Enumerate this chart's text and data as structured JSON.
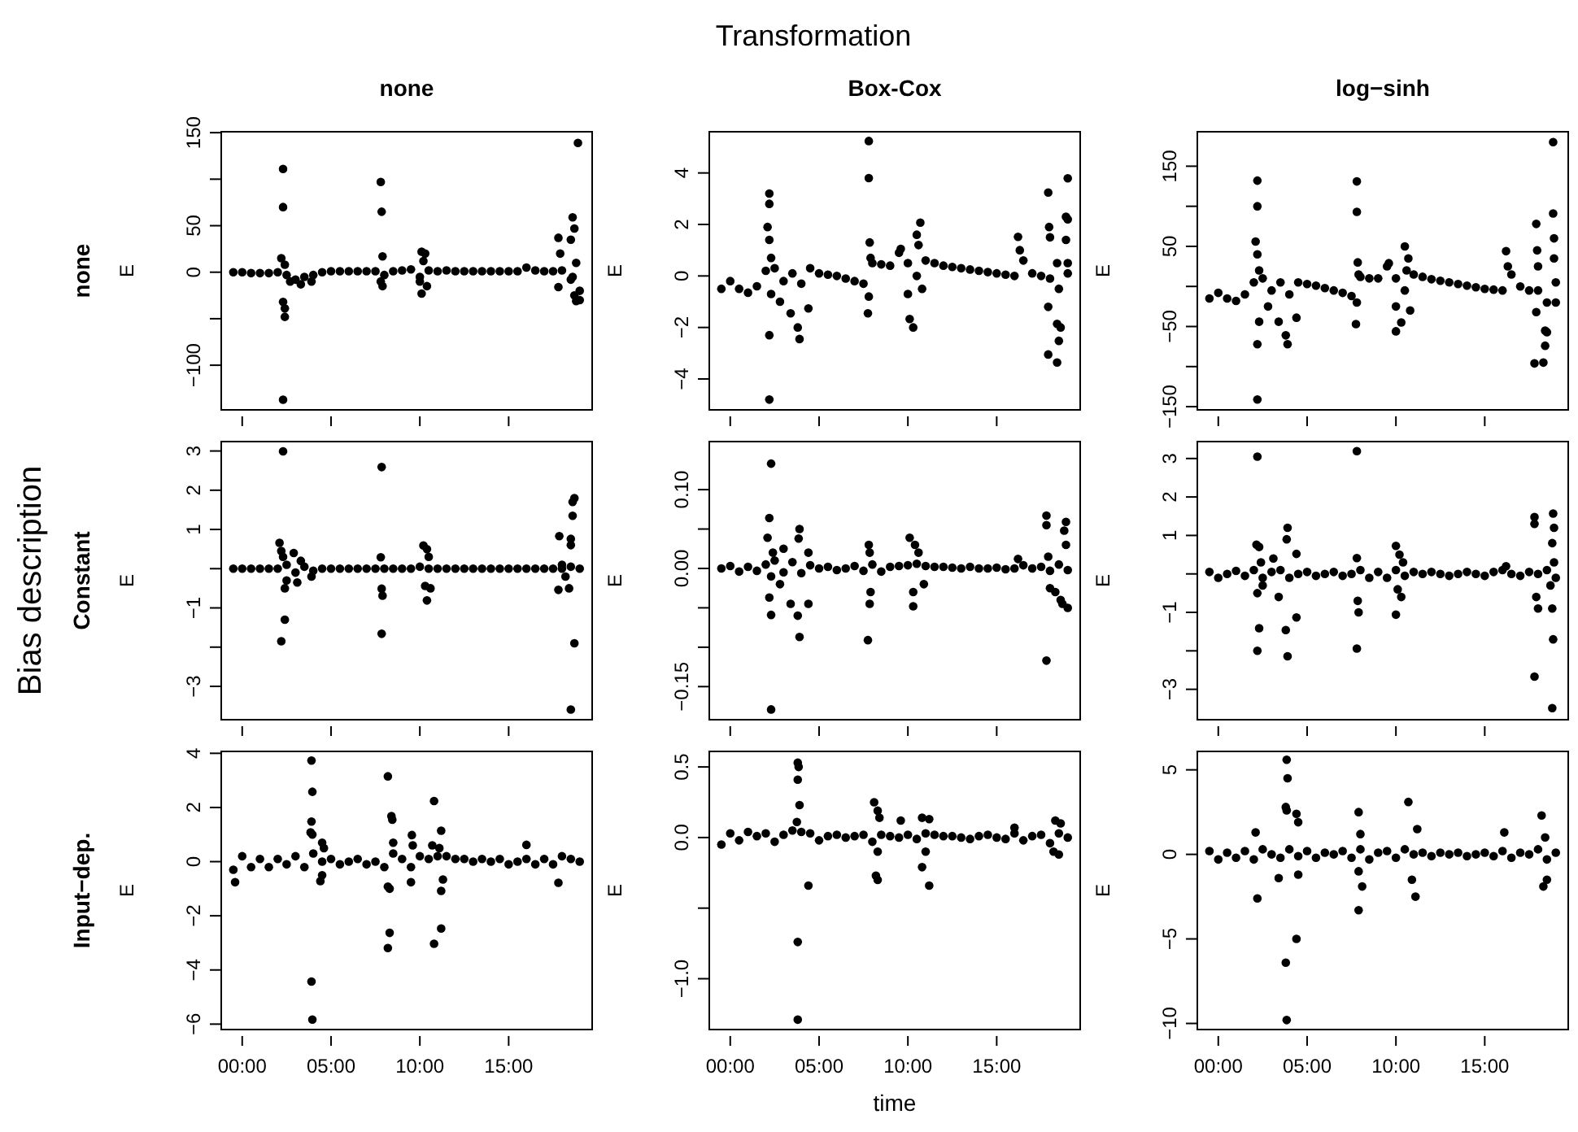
{
  "chart_data": [
    {
      "type": "scatter",
      "title": "none",
      "ylabel": "E",
      "annotations": [
        "Transformation",
        "Bias description",
        "none"
      ],
      "color": "#000000",
      "marker": "circle",
      "tick_labels": "y",
      "xlim": [
        -1.18,
        19.7
      ],
      "ylim": [
        -148,
        151
      ],
      "xticks": [
        {
          "value": 0,
          "label": null
        },
        {
          "value": 5,
          "label": null
        },
        {
          "value": 10,
          "label": null
        },
        {
          "value": 15,
          "label": null
        }
      ],
      "yticks": [
        150,
        {
          "value": 100,
          "label": null
        },
        50,
        0,
        {
          "value": -50,
          "label": null
        },
        -100
      ],
      "x": [
        -0.5,
        0,
        0.5,
        1,
        1.5,
        2,
        2.5,
        3,
        3.5,
        4,
        4.5,
        5,
        5.5,
        6,
        6.5,
        7,
        7.5,
        8,
        8.5,
        9,
        9.5,
        10,
        10.5,
        11,
        11.5,
        12,
        12.5,
        13,
        13.5,
        14,
        14.5,
        15,
        15.5,
        16,
        16.5,
        17,
        17.5,
        18,
        18.5,
        19,
        2.3,
        2.3,
        2.2,
        2.4,
        2.3,
        2.4,
        2.4,
        2.3,
        2.7,
        3.3,
        3.9,
        7.8,
        7.85,
        7.9,
        7.8,
        7.9,
        10.1,
        10.3,
        10.2,
        10.0,
        10.1,
        10.4,
        17.8,
        17.9,
        17.8,
        18.6,
        18.7,
        18.5,
        18.8,
        18.6,
        18.7,
        18.8,
        19.0,
        18.9
      ],
      "values": [
        0,
        0,
        -1,
        -1,
        -1,
        0,
        -3,
        -8,
        -5,
        -3,
        0,
        1,
        1,
        1,
        1,
        1,
        1,
        -3,
        1,
        2,
        3,
        -5,
        2,
        1,
        2,
        1,
        1,
        1,
        1,
        1,
        1,
        1,
        1,
        5,
        2,
        1,
        1,
        2,
        -8,
        -20,
        111,
        70,
        15,
        8,
        -32,
        -39,
        -48,
        -137,
        -10,
        -13,
        -10,
        97,
        65,
        17,
        -10,
        -15,
        22,
        20,
        12,
        -10,
        -23,
        -15,
        37,
        20,
        -16,
        59,
        47,
        35,
        10,
        -5,
        -25,
        -31,
        -30,
        139
      ]
    },
    {
      "type": "scatter",
      "title": "Box-Cox",
      "ylabel": "E",
      "color": "#000000",
      "marker": "circle",
      "tick_labels": "y",
      "xlim": [
        -1.18,
        19.7
      ],
      "ylim": [
        -5.2,
        5.6
      ],
      "xticks": [
        {
          "value": 0,
          "label": null
        },
        {
          "value": 5,
          "label": null
        },
        {
          "value": 10,
          "label": null
        },
        {
          "value": 15,
          "label": null
        }
      ],
      "yticks": [
        4,
        2,
        0,
        -2,
        -4
      ],
      "x": [
        -0.5,
        0,
        0.5,
        1,
        1.5,
        2,
        2.5,
        3,
        3.5,
        4,
        4.5,
        5,
        5.5,
        6,
        6.5,
        7,
        7.5,
        8,
        8.5,
        9,
        9.5,
        10,
        10.5,
        11,
        11.5,
        12,
        12.5,
        13,
        13.5,
        14,
        14.5,
        15,
        15.5,
        16,
        16.5,
        17,
        17.5,
        18,
        18.5,
        19,
        2.2,
        2.2,
        2.1,
        2.2,
        2.3,
        2.3,
        2.2,
        2.2,
        3.4,
        3.8,
        3.9,
        4.4,
        2.8,
        7.8,
        7.8,
        7.85,
        7.9,
        7.8,
        7.75,
        9.6,
        10.0,
        10.1,
        10.3,
        10.5,
        10.7,
        10.6,
        10.8,
        16.2,
        16.3,
        17.9,
        17.95,
        18.0,
        17.9,
        17.9,
        18.4,
        18.4,
        18.5,
        18.4,
        18.6,
        18.9,
        19.0,
        19.0,
        18.9,
        19.0
      ],
      "values": [
        -0.5,
        -0.2,
        -0.5,
        -0.65,
        -0.4,
        0.2,
        0.3,
        -0.2,
        0.1,
        -0.3,
        0.3,
        0.1,
        0.05,
        0,
        -0.1,
        -0.2,
        -0.3,
        0.5,
        0.45,
        0.4,
        0.9,
        0.5,
        0,
        0.6,
        0.5,
        0.4,
        0.35,
        0.3,
        0.25,
        0.2,
        0.15,
        0.1,
        0.05,
        0,
        0.6,
        0.1,
        0,
        -0.1,
        -0.5,
        0.1,
        3.2,
        2.8,
        1.9,
        1.4,
        0.7,
        -0.7,
        -2.3,
        -4.8,
        -1.45,
        -2.0,
        -2.45,
        -1.26,
        -1.0,
        5.24,
        3.8,
        1.3,
        0.7,
        -0.8,
        -1.45,
        1.05,
        -0.7,
        -1.67,
        -2.0,
        1.6,
        2.07,
        1.2,
        -0.5,
        1.52,
        1.0,
        3.24,
        1.9,
        1.5,
        -1.2,
        -3.05,
        0.5,
        -1.86,
        -2.52,
        -3.36,
        -2.0,
        2.3,
        2.2,
        3.79,
        1.4,
        0.5
      ]
    },
    {
      "type": "scatter",
      "title": "log−sinh",
      "ylabel": "E",
      "color": "#000000",
      "marker": "circle",
      "tick_labels": "y",
      "xlim": [
        -1.18,
        19.7
      ],
      "ylim": [
        -154,
        193
      ],
      "xticks": [
        {
          "value": 0,
          "label": null
        },
        {
          "value": 5,
          "label": null
        },
        {
          "value": 10,
          "label": null
        },
        {
          "value": 15,
          "label": null
        }
      ],
      "yticks": [
        150,
        {
          "value": 100,
          "label": null
        },
        50,
        {
          "value": 0,
          "label": null
        },
        -50,
        {
          "value": -100,
          "label": null
        },
        -150
      ],
      "x": [
        -0.5,
        0,
        0.5,
        1,
        1.5,
        2,
        2.5,
        3,
        3.5,
        4,
        4.5,
        5,
        5.5,
        6,
        6.5,
        7,
        7.5,
        8,
        8.5,
        9,
        9.5,
        10,
        10.5,
        11,
        11.5,
        12,
        12.5,
        13,
        13.5,
        14,
        14.5,
        15,
        15.5,
        16,
        16.5,
        17,
        17.5,
        18,
        18.5,
        19,
        2.2,
        2.2,
        2.1,
        2.2,
        2.3,
        2.3,
        2.2,
        2.2,
        3.4,
        3.8,
        3.9,
        4.4,
        2.8,
        7.8,
        7.8,
        7.85,
        7.9,
        7.8,
        7.75,
        9.6,
        10.0,
        10.0,
        10.3,
        10.5,
        10.7,
        10.6,
        10.8,
        16.2,
        16.3,
        17.9,
        17.95,
        18.0,
        17.9,
        17.8,
        18.3,
        18.4,
        18.5,
        18.4,
        18.85,
        18.9,
        18.9,
        18.85,
        19.0
      ],
      "values": [
        -15,
        -8,
        -15,
        -18,
        -10,
        5,
        10,
        -5,
        5,
        -10,
        5,
        3,
        1,
        -2,
        -5,
        -8,
        -12,
        12,
        10,
        10,
        25,
        10,
        -5,
        15,
        12,
        9,
        7,
        5,
        3,
        1,
        -1,
        -3,
        -4,
        -5,
        15,
        0,
        -5,
        -5,
        -20,
        5,
        132,
        100,
        56,
        40,
        20,
        -44,
        -72,
        -141,
        -44,
        -61,
        -72,
        -39,
        -25,
        131,
        93,
        30,
        15,
        -20,
        -47,
        29,
        -25,
        -56,
        -45,
        50,
        35,
        20,
        -30,
        44,
        25,
        78,
        45,
        25,
        -32,
        -96,
        -95,
        -55,
        -57,
        -74,
        91,
        60,
        35,
        180,
        -20
      ]
    },
    {
      "type": "scatter",
      "ylabel": "E",
      "annotations": [
        "Constant"
      ],
      "color": "#000000",
      "marker": "circle",
      "tick_labels": "y",
      "xlim": [
        -1.18,
        19.7
      ],
      "ylim": [
        -3.85,
        3.24
      ],
      "xticks": [
        {
          "value": 0,
          "label": null
        },
        {
          "value": 5,
          "label": null
        },
        {
          "value": 10,
          "label": null
        },
        {
          "value": 15,
          "label": null
        }
      ],
      "yticks": [
        3,
        2,
        1,
        {
          "value": 0,
          "label": null
        },
        -1,
        {
          "value": -2,
          "label": null
        },
        -3
      ],
      "x": [
        -0.5,
        0,
        0.5,
        1,
        1.5,
        2,
        2.5,
        3,
        3.5,
        4,
        4.5,
        5,
        5.5,
        6,
        6.5,
        7,
        7.5,
        8,
        8.5,
        9,
        9.5,
        10,
        10.5,
        11,
        11.5,
        12,
        12.5,
        13,
        13.5,
        14,
        14.5,
        15,
        15.5,
        16,
        16.5,
        17,
        17.5,
        18,
        18.5,
        19,
        2.1,
        2.2,
        2.3,
        2.5,
        2.4,
        2.4,
        2.2,
        2.3,
        3.9,
        3.3,
        2.9,
        3.1,
        7.85,
        7.8,
        7.85,
        7.9,
        7.85,
        10.2,
        10.4,
        10.5,
        10.3,
        10.4,
        10.6,
        17.85,
        17.8,
        18.0,
        18.2,
        18.4,
        18.6,
        18.6,
        18.5,
        18.5,
        18.7,
        18.7,
        18.5
      ],
      "values": [
        0,
        0,
        0,
        0,
        0,
        0,
        0.1,
        -0.1,
        0.05,
        -0.05,
        0,
        0,
        0,
        0,
        0,
        0,
        0,
        0,
        0,
        0,
        0,
        0.05,
        0,
        0,
        0,
        0,
        0,
        0,
        0,
        0,
        0,
        0,
        0,
        0,
        0,
        0,
        0,
        0,
        0.05,
        0,
        0.66,
        0.45,
        0.3,
        -0.3,
        -0.5,
        -1.3,
        -1.85,
        2.99,
        -0.2,
        0.2,
        0.4,
        -0.35,
        2.59,
        0.29,
        -0.51,
        -0.69,
        -1.66,
        0.59,
        0.5,
        0.3,
        -0.44,
        -0.81,
        -0.5,
        0.83,
        -0.54,
        0.1,
        -0.2,
        -0.5,
        1.7,
        1.35,
        0.76,
        0.6,
        1.8,
        -1.9,
        -3.59
      ]
    },
    {
      "type": "scatter",
      "ylabel": "E",
      "color": "#000000",
      "marker": "circle",
      "tick_labels": "y",
      "xlim": [
        -1.18,
        19.7
      ],
      "ylim": [
        -0.192,
        0.161
      ],
      "xticks": [
        {
          "value": 0,
          "label": null
        },
        {
          "value": 5,
          "label": null
        },
        {
          "value": 10,
          "label": null
        },
        {
          "value": 15,
          "label": null
        }
      ],
      "yticks": [
        {
          "value": 0.1,
          "label": "0.10"
        },
        {
          "value": 0.05,
          "label": null
        },
        {
          "value": 0,
          "label": "0.00"
        },
        {
          "value": -0.05,
          "label": null
        },
        {
          "value": -0.1,
          "label": null
        },
        {
          "value": -0.15,
          "label": "−0.15"
        }
      ],
      "x": [
        -0.5,
        0,
        0.5,
        1,
        1.5,
        2,
        2.5,
        3,
        3.5,
        4,
        4.5,
        5,
        5.5,
        6,
        6.5,
        7,
        7.5,
        8,
        8.5,
        9,
        9.5,
        10,
        10.5,
        11,
        11.5,
        12,
        12.5,
        13,
        13.5,
        14,
        14.5,
        15,
        15.5,
        16,
        16.5,
        17,
        17.5,
        18,
        18.5,
        19,
        2.3,
        2.2,
        2.1,
        2.4,
        2.3,
        2.2,
        2.3,
        2.3,
        3.4,
        3.8,
        3.9,
        3.9,
        3.85,
        4.4,
        4.4,
        3.0,
        2.8,
        7.8,
        7.85,
        7.9,
        7.85,
        7.75,
        10.1,
        10.4,
        10.6,
        10.3,
        10.3,
        10.9,
        16.2,
        17.8,
        17.8,
        17.9,
        18.0,
        17.8,
        18.3,
        18.9,
        18.8,
        18.9,
        18.7,
        19.0,
        18.6
      ],
      "values": [
        0,
        0.003,
        -0.004,
        0.002,
        -0.003,
        0.005,
        0.01,
        -0.005,
        0.008,
        -0.006,
        0.004,
        0,
        0.002,
        -0.002,
        0,
        0.003,
        -0.003,
        0.005,
        -0.004,
        0.002,
        0.003,
        0.004,
        0.006,
        0.003,
        0.002,
        0.002,
        0.001,
        0,
        0.002,
        0,
        0,
        0.001,
        -0.001,
        0,
        0.004,
        0,
        0.002,
        -0.003,
        0.005,
        -0.002,
        0.133,
        0.064,
        0.039,
        0.02,
        -0.01,
        -0.037,
        -0.059,
        -0.179,
        -0.045,
        -0.06,
        -0.087,
        0.05,
        0.038,
        -0.045,
        0.02,
        0.025,
        -0.02,
        0.03,
        0.02,
        -0.03,
        -0.045,
        -0.091,
        0.039,
        0.03,
        0.02,
        -0.03,
        -0.048,
        -0.02,
        0.012,
        0.067,
        0.055,
        0.015,
        -0.025,
        -0.117,
        -0.03,
        0.059,
        0.048,
        0.03,
        -0.045,
        -0.05,
        -0.04
      ]
    },
    {
      "type": "scatter",
      "ylabel": "E",
      "color": "#000000",
      "marker": "circle",
      "tick_labels": "y",
      "xlim": [
        -1.18,
        19.7
      ],
      "ylim": [
        -3.79,
        3.44
      ],
      "xticks": [
        {
          "value": 0,
          "label": null
        },
        {
          "value": 5,
          "label": null
        },
        {
          "value": 10,
          "label": null
        },
        {
          "value": 15,
          "label": null
        }
      ],
      "yticks": [
        3,
        2,
        1,
        {
          "value": 0,
          "label": null
        },
        -1,
        {
          "value": -2,
          "label": null
        },
        -3
      ],
      "x": [
        -0.5,
        0,
        0.5,
        1,
        1.5,
        2,
        2.5,
        3,
        3.5,
        4,
        4.5,
        5,
        5.5,
        6,
        6.5,
        7,
        7.5,
        8,
        8.5,
        9,
        9.5,
        10,
        10.5,
        11,
        11.5,
        12,
        12.5,
        13,
        13.5,
        14,
        14.5,
        15,
        15.5,
        16,
        16.5,
        17,
        17.5,
        18,
        18.5,
        19,
        2.2,
        2.15,
        2.3,
        2.4,
        2.5,
        2.2,
        2.3,
        2.2,
        3.9,
        3.85,
        4.4,
        3.8,
        3.9,
        4.4,
        3.4,
        3.1,
        7.8,
        7.8,
        7.85,
        7.9,
        7.8,
        10.0,
        10.2,
        10.4,
        10.1,
        10.3,
        10.0,
        16.2,
        17.8,
        17.8,
        17.9,
        18.0,
        17.8,
        18.85,
        18.9,
        18.8,
        18.9,
        18.7,
        18.8,
        18.85,
        18.8
      ],
      "values": [
        0.05,
        -0.1,
        0,
        0.08,
        -0.05,
        0.1,
        -0.1,
        0.05,
        0.1,
        -0.1,
        0,
        0.05,
        -0.05,
        0,
        0.05,
        -0.05,
        0,
        0.1,
        -0.1,
        0.05,
        -0.1,
        0.1,
        -0.05,
        0.05,
        0,
        0.05,
        0,
        -0.05,
        0,
        0.05,
        0,
        -0.05,
        0.05,
        0.1,
        0,
        -0.05,
        0.05,
        0,
        0.1,
        -0.1,
        3.05,
        0.76,
        0.7,
        0.3,
        -0.3,
        -0.5,
        -1.41,
        -2.0,
        1.2,
        0.9,
        0.52,
        -1.46,
        -2.14,
        -1.13,
        -0.6,
        0.4,
        3.19,
        0.41,
        -0.7,
        -1.0,
        -1.94,
        0.73,
        0.5,
        0.3,
        -0.4,
        -0.6,
        -1.06,
        0.2,
        1.48,
        1.3,
        -0.6,
        -0.9,
        -2.67,
        1.57,
        1.2,
        0.8,
        0.3,
        -0.3,
        -0.9,
        -1.7,
        -3.49
      ]
    },
    {
      "type": "scatter",
      "ylabel": "E",
      "annotations": [
        "Input−dep."
      ],
      "color": "#000000",
      "marker": "circle",
      "xlim": [
        -1.18,
        19.7
      ],
      "ylim": [
        -6.2,
        4.07
      ],
      "xticks": [
        {
          "value": 0,
          "label": "00:00"
        },
        {
          "value": 5,
          "label": "05:00"
        },
        {
          "value": 10,
          "label": "10:00"
        },
        {
          "value": 15,
          "label": "15:00"
        }
      ],
      "yticks": [
        4,
        2,
        0,
        -2,
        -4,
        -6
      ],
      "x": [
        -0.5,
        0,
        0.5,
        1,
        1.5,
        2,
        2.5,
        3,
        3.5,
        4,
        4.5,
        5,
        5.5,
        6,
        6.5,
        7,
        7.5,
        8,
        8.5,
        9,
        9.5,
        10,
        10.5,
        11,
        11.5,
        12,
        12.5,
        13,
        13.5,
        14,
        14.5,
        15,
        15.5,
        16,
        16.5,
        17,
        17.5,
        18,
        18.5,
        19,
        -0.4,
        3.9,
        3.95,
        3.9,
        3.85,
        3.95,
        3.9,
        3.95,
        4.5,
        4.6,
        4.5,
        4.4,
        8.2,
        8.4,
        8.45,
        8.5,
        8.2,
        8.3,
        8.3,
        8.2,
        9.55,
        9.6,
        9.5,
        10.8,
        10.7,
        11.2,
        11.1,
        11.3,
        11.2,
        11.2,
        10.8,
        16.0,
        17.8
      ],
      "values": [
        -0.3,
        0.2,
        -0.2,
        0.1,
        -0.2,
        0.1,
        -0.1,
        0.2,
        -0.2,
        0.3,
        0,
        0.1,
        -0.1,
        0,
        0.1,
        -0.1,
        0,
        -0.2,
        0.3,
        0.1,
        -0.2,
        0.2,
        0.1,
        0.2,
        0.2,
        0.1,
        0.1,
        0,
        0.1,
        0,
        0.1,
        -0.1,
        0,
        0.1,
        -0.1,
        0.1,
        -0.1,
        0.2,
        0.1,
        0,
        -0.76,
        3.73,
        2.58,
        1.48,
        1.08,
        1.0,
        -4.43,
        -5.83,
        0.7,
        0.5,
        -0.5,
        -0.72,
        3.15,
        1.68,
        1.55,
        0.7,
        -0.92,
        -1.0,
        -2.63,
        -3.19,
        0.98,
        0.6,
        -0.76,
        2.24,
        0.6,
        1.14,
        0.5,
        -0.66,
        -1.08,
        -2.47,
        -3.03,
        0.62,
        -0.78
      ]
    },
    {
      "type": "scatter",
      "ylabel": "E",
      "xlabel": "time",
      "color": "#000000",
      "marker": "circle",
      "xlim": [
        -1.18,
        19.7
      ],
      "ylim": [
        -1.36,
        0.61
      ],
      "xticks": [
        {
          "value": 0,
          "label": "00:00"
        },
        {
          "value": 5,
          "label": "05:00"
        },
        {
          "value": 10,
          "label": "10:00"
        },
        {
          "value": 15,
          "label": "15:00"
        }
      ],
      "yticks": [
        {
          "value": 0.5,
          "label": "0.5"
        },
        {
          "value": 0,
          "label": "0.0"
        },
        {
          "value": -0.5,
          "label": null
        },
        {
          "value": -1,
          "label": "−1.0"
        }
      ],
      "x": [
        -0.5,
        0,
        0.5,
        1,
        1.5,
        2,
        2.5,
        3,
        3.5,
        4,
        4.5,
        5,
        5.5,
        6,
        6.5,
        7,
        7.5,
        8,
        8.5,
        9,
        9.5,
        10,
        10.5,
        11,
        11.5,
        12,
        12.5,
        13,
        13.5,
        14,
        14.5,
        15,
        15.5,
        16,
        16.5,
        17,
        17.5,
        18,
        18.5,
        19,
        3.8,
        3.85,
        3.8,
        3.9,
        3.75,
        3.8,
        3.8,
        4.4,
        8.1,
        8.3,
        8.4,
        8.3,
        8.2,
        8.3,
        9.6,
        10.8,
        11.2,
        10.8,
        11.2,
        11.0,
        16.0,
        18.3,
        18.6,
        18.2,
        18.5
      ],
      "values": [
        -0.05,
        0.03,
        -0.02,
        0.04,
        0.01,
        0.03,
        -0.03,
        0.02,
        0.05,
        0.04,
        0.03,
        -0.02,
        0.01,
        0.02,
        0,
        0.01,
        0.02,
        -0.03,
        0.02,
        0.01,
        0,
        0.02,
        -0.01,
        0.03,
        0.02,
        0.01,
        0.01,
        0,
        -0.01,
        0.01,
        0.02,
        0,
        -0.01,
        0.03,
        -0.02,
        0.01,
        0.02,
        -0.04,
        0.03,
        0,
        0.53,
        0.5,
        0.41,
        0.23,
        0.11,
        -0.74,
        -1.29,
        -0.34,
        0.25,
        0.19,
        0.14,
        -0.1,
        -0.27,
        -0.3,
        0.12,
        0.14,
        0.13,
        -0.21,
        -0.34,
        -0.1,
        0.07,
        0.12,
        0.1,
        -0.1,
        -0.12
      ]
    },
    {
      "type": "scatter",
      "ylabel": "E",
      "color": "#000000",
      "marker": "circle",
      "xlim": [
        -1.18,
        19.7
      ],
      "ylim": [
        -10.36,
        6.09
      ],
      "xticks": [
        {
          "value": 0,
          "label": "00:00"
        },
        {
          "value": 5,
          "label": "05:00"
        },
        {
          "value": 10,
          "label": "10:00"
        },
        {
          "value": 15,
          "label": "15:00"
        }
      ],
      "yticks": [
        5,
        0,
        -5,
        -10
      ],
      "x": [
        -0.5,
        0,
        0.5,
        1,
        1.5,
        2,
        2.5,
        3,
        3.5,
        4,
        4.5,
        5,
        5.5,
        6,
        6.5,
        7,
        7.5,
        8,
        8.5,
        9,
        9.5,
        10,
        10.5,
        11,
        11.5,
        12,
        12.5,
        13,
        13.5,
        14,
        14.5,
        15,
        15.5,
        16,
        16.5,
        17,
        17.5,
        18,
        18.5,
        19,
        2.2,
        2.1,
        3.4,
        3.85,
        3.9,
        3.8,
        3.85,
        3.8,
        3.85,
        4.4,
        4.5,
        4.4,
        4.5,
        7.9,
        8.0,
        7.9,
        8.1,
        7.9,
        10.7,
        11.2,
        10.9,
        11.1,
        16.1,
        18.2,
        18.3,
        18.4,
        18.5
      ],
      "values": [
        0.2,
        -0.3,
        0.1,
        -0.2,
        0.2,
        -0.3,
        0.3,
        0,
        -0.2,
        0.3,
        -0.1,
        0.2,
        -0.2,
        0.1,
        0,
        0.2,
        -0.2,
        0.3,
        -0.3,
        0.1,
        0.2,
        -0.2,
        0.3,
        0,
        0.1,
        -0.1,
        0.1,
        0,
        0.1,
        -0.1,
        0,
        0.1,
        -0.1,
        0.2,
        -0.2,
        0.1,
        0,
        0.3,
        -0.3,
        0.1,
        -2.6,
        1.3,
        -1.4,
        5.6,
        4.5,
        2.8,
        2.6,
        -6.4,
        -9.8,
        2.4,
        1.9,
        -5.0,
        -1.2,
        2.5,
        1.2,
        -1.0,
        -1.9,
        -3.3,
        3.1,
        1.5,
        -1.5,
        -2.5,
        1.3,
        2.3,
        -1.9,
        1.0,
        -1.5
      ]
    }
  ]
}
